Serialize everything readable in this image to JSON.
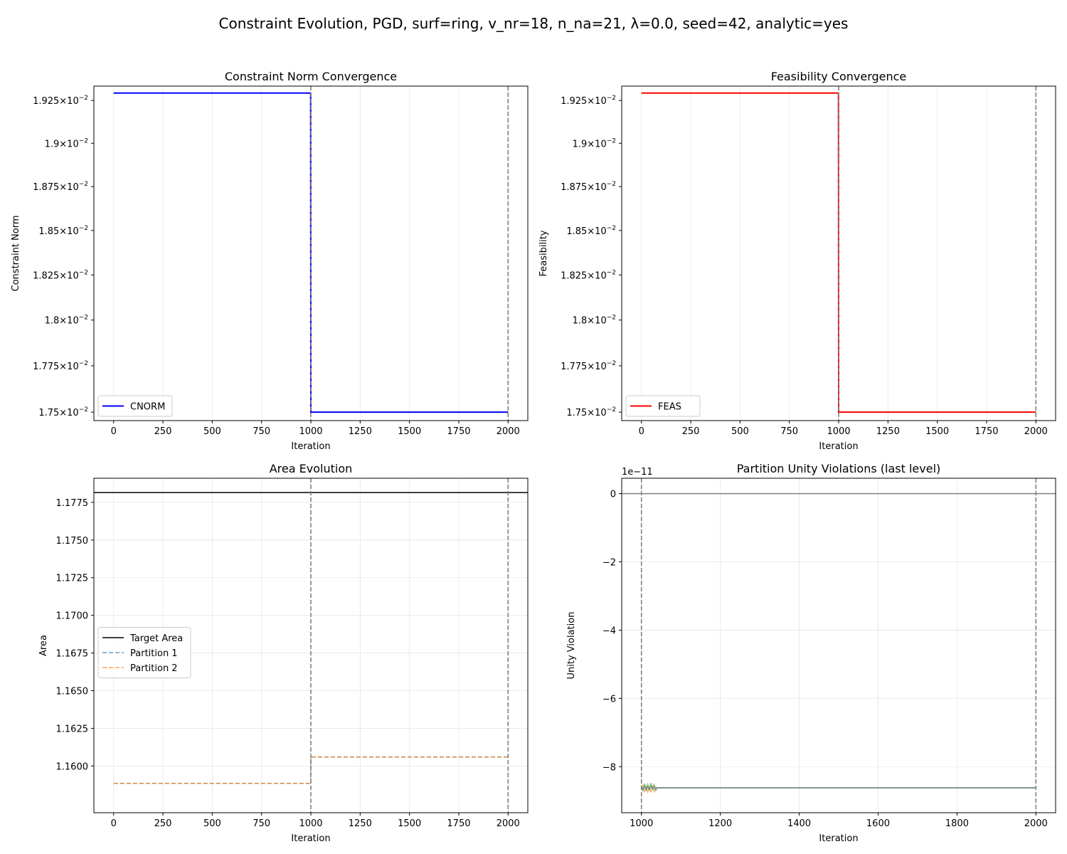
{
  "suptitle": "Constraint Evolution, PGD, surf=ring, v_nr=18, n_na=21, λ=0.0, seed=42, analytic=yes",
  "chart_data": [
    {
      "id": "cnorm",
      "type": "line",
      "title": "Constraint Norm Convergence",
      "xlabel": "Iteration",
      "ylabel": "Constraint Norm",
      "yscale": "log",
      "xlim": [
        -100,
        2100
      ],
      "ylim": [
        0.017455,
        0.019335
      ],
      "xticks": [
        0,
        250,
        500,
        750,
        1000,
        1250,
        1500,
        1750,
        2000
      ],
      "yticks": [
        {
          "value": 0.0175,
          "mantissa": "1.75"
        },
        {
          "value": 0.01775,
          "mantissa": "1.775"
        },
        {
          "value": 0.018,
          "mantissa": "1.8"
        },
        {
          "value": 0.01825,
          "mantissa": "1.825"
        },
        {
          "value": 0.0185,
          "mantissa": "1.85"
        },
        {
          "value": 0.01875,
          "mantissa": "1.875"
        },
        {
          "value": 0.019,
          "mantissa": "1.9"
        },
        {
          "value": 0.01925,
          "mantissa": "1.925"
        }
      ],
      "ytick_base": "10",
      "ytick_exp": "−2",
      "grid": "x",
      "vlines": [
        1000,
        2000
      ],
      "legend": "lower-left",
      "series": [
        {
          "name": "CNORM",
          "color": "#0000ff",
          "dash": "",
          "width": 2,
          "x": [
            0,
            999,
            1000,
            2000
          ],
          "y": [
            0.019294,
            0.019294,
            0.0175,
            0.0175
          ]
        }
      ]
    },
    {
      "id": "feas",
      "type": "line",
      "title": "Feasibility Convergence",
      "xlabel": "Iteration",
      "ylabel": "Feasibility",
      "yscale": "log",
      "xlim": [
        -100,
        2100
      ],
      "ylim": [
        0.017455,
        0.019335
      ],
      "xticks": [
        0,
        250,
        500,
        750,
        1000,
        1250,
        1500,
        1750,
        2000
      ],
      "yticks": [
        {
          "value": 0.0175,
          "mantissa": "1.75"
        },
        {
          "value": 0.01775,
          "mantissa": "1.775"
        },
        {
          "value": 0.018,
          "mantissa": "1.8"
        },
        {
          "value": 0.01825,
          "mantissa": "1.825"
        },
        {
          "value": 0.0185,
          "mantissa": "1.85"
        },
        {
          "value": 0.01875,
          "mantissa": "1.875"
        },
        {
          "value": 0.019,
          "mantissa": "1.9"
        },
        {
          "value": 0.01925,
          "mantissa": "1.925"
        }
      ],
      "ytick_base": "10",
      "ytick_exp": "−2",
      "grid": "x",
      "vlines": [
        1000,
        2000
      ],
      "legend": "lower-left",
      "series": [
        {
          "name": "FEAS",
          "color": "#ff0000",
          "dash": "",
          "width": 2,
          "x": [
            0,
            999,
            1000,
            2000
          ],
          "y": [
            0.019294,
            0.019294,
            0.0175,
            0.0175
          ]
        }
      ]
    },
    {
      "id": "area",
      "type": "line",
      "title": "Area Evolution",
      "xlabel": "Iteration",
      "ylabel": "Area",
      "yscale": "linear",
      "xlim": [
        -100,
        2100
      ],
      "ylim": [
        1.1569,
        1.1791
      ],
      "xticks": [
        0,
        250,
        500,
        750,
        1000,
        1250,
        1500,
        1750,
        2000
      ],
      "yticks": [
        {
          "value": 1.16,
          "label": "1.1600"
        },
        {
          "value": 1.1625,
          "label": "1.1625"
        },
        {
          "value": 1.165,
          "label": "1.1650"
        },
        {
          "value": 1.1675,
          "label": "1.1675"
        },
        {
          "value": 1.17,
          "label": "1.1700"
        },
        {
          "value": 1.1725,
          "label": "1.1725"
        },
        {
          "value": 1.175,
          "label": "1.1750"
        },
        {
          "value": 1.1775,
          "label": "1.1775"
        }
      ],
      "grid": "both",
      "vlines": [
        1000,
        2000
      ],
      "legend": "center-left",
      "series": [
        {
          "name": "Target Area",
          "color": "#000000",
          "dash": "",
          "width": 1.5,
          "x": [
            -100,
            2100
          ],
          "y": [
            1.17815,
            1.17815
          ]
        },
        {
          "name": "Partition 1",
          "color": "#1f77b4",
          "dash": "6,3",
          "width": 1.5,
          "opacity": 0.7,
          "x": [
            0,
            999,
            1000,
            2000
          ],
          "y": [
            1.15885,
            1.15885,
            1.1606,
            1.1606
          ]
        },
        {
          "name": "Partition 2",
          "color": "#ff7f0e",
          "dash": "6,3",
          "width": 1.5,
          "opacity": 0.7,
          "x": [
            0,
            999,
            1000,
            2000
          ],
          "y": [
            1.15885,
            1.15885,
            1.1606,
            1.1606
          ]
        }
      ]
    },
    {
      "id": "unity",
      "type": "line",
      "title": "Partition Unity Violations (last level)",
      "xlabel": "Iteration",
      "ylabel": "Unity Violation",
      "yscale": "linear",
      "offset_text": "1e−11",
      "xlim": [
        950,
        2050
      ],
      "ylim": [
        -9.35,
        0.45
      ],
      "xticks": [
        1000,
        1200,
        1400,
        1600,
        1800,
        2000
      ],
      "yticks": [
        {
          "value": 0,
          "label": "0"
        },
        {
          "value": -2,
          "label": "−2"
        },
        {
          "value": -4,
          "label": "−4"
        },
        {
          "value": -6,
          "label": "−6"
        },
        {
          "value": -8,
          "label": "−8"
        }
      ],
      "grid": "both",
      "vlines": [
        1000,
        2000
      ],
      "hline": 0,
      "legend": "none",
      "series": [
        {
          "color": "#2ca02c",
          "dash": "",
          "width": 1.5,
          "opacity": 0.6,
          "x": [
            1000,
            1004,
            1008,
            1012,
            1016,
            1020,
            1024,
            1028,
            1032,
            1036,
            1040,
            2000
          ],
          "y": [
            -8.55,
            -8.72,
            -8.5,
            -8.68,
            -8.52,
            -8.7,
            -8.48,
            -8.66,
            -8.53,
            -8.7,
            -8.62,
            -8.62
          ]
        },
        {
          "color": "#ff7f0e",
          "dash": "",
          "width": 1.5,
          "opacity": 0.6,
          "x": [
            1000,
            1004,
            1008,
            1012,
            1016,
            1020,
            1024,
            1028,
            1032,
            1036,
            1040,
            2000
          ],
          "y": [
            -8.68,
            -8.55,
            -8.75,
            -8.58,
            -8.74,
            -8.56,
            -8.76,
            -8.57,
            -8.72,
            -8.58,
            -8.62,
            -8.62
          ]
        },
        {
          "color": "#1f77b4",
          "dash": "",
          "width": 1.5,
          "opacity": 0.6,
          "x": [
            1000,
            1004,
            1008,
            1012,
            1016,
            1020,
            1024,
            1028,
            1032,
            1036,
            1040,
            2000
          ],
          "y": [
            -8.6,
            -8.66,
            -8.58,
            -8.67,
            -8.59,
            -8.66,
            -8.57,
            -8.65,
            -8.6,
            -8.66,
            -8.62,
            -8.62
          ]
        }
      ]
    }
  ]
}
